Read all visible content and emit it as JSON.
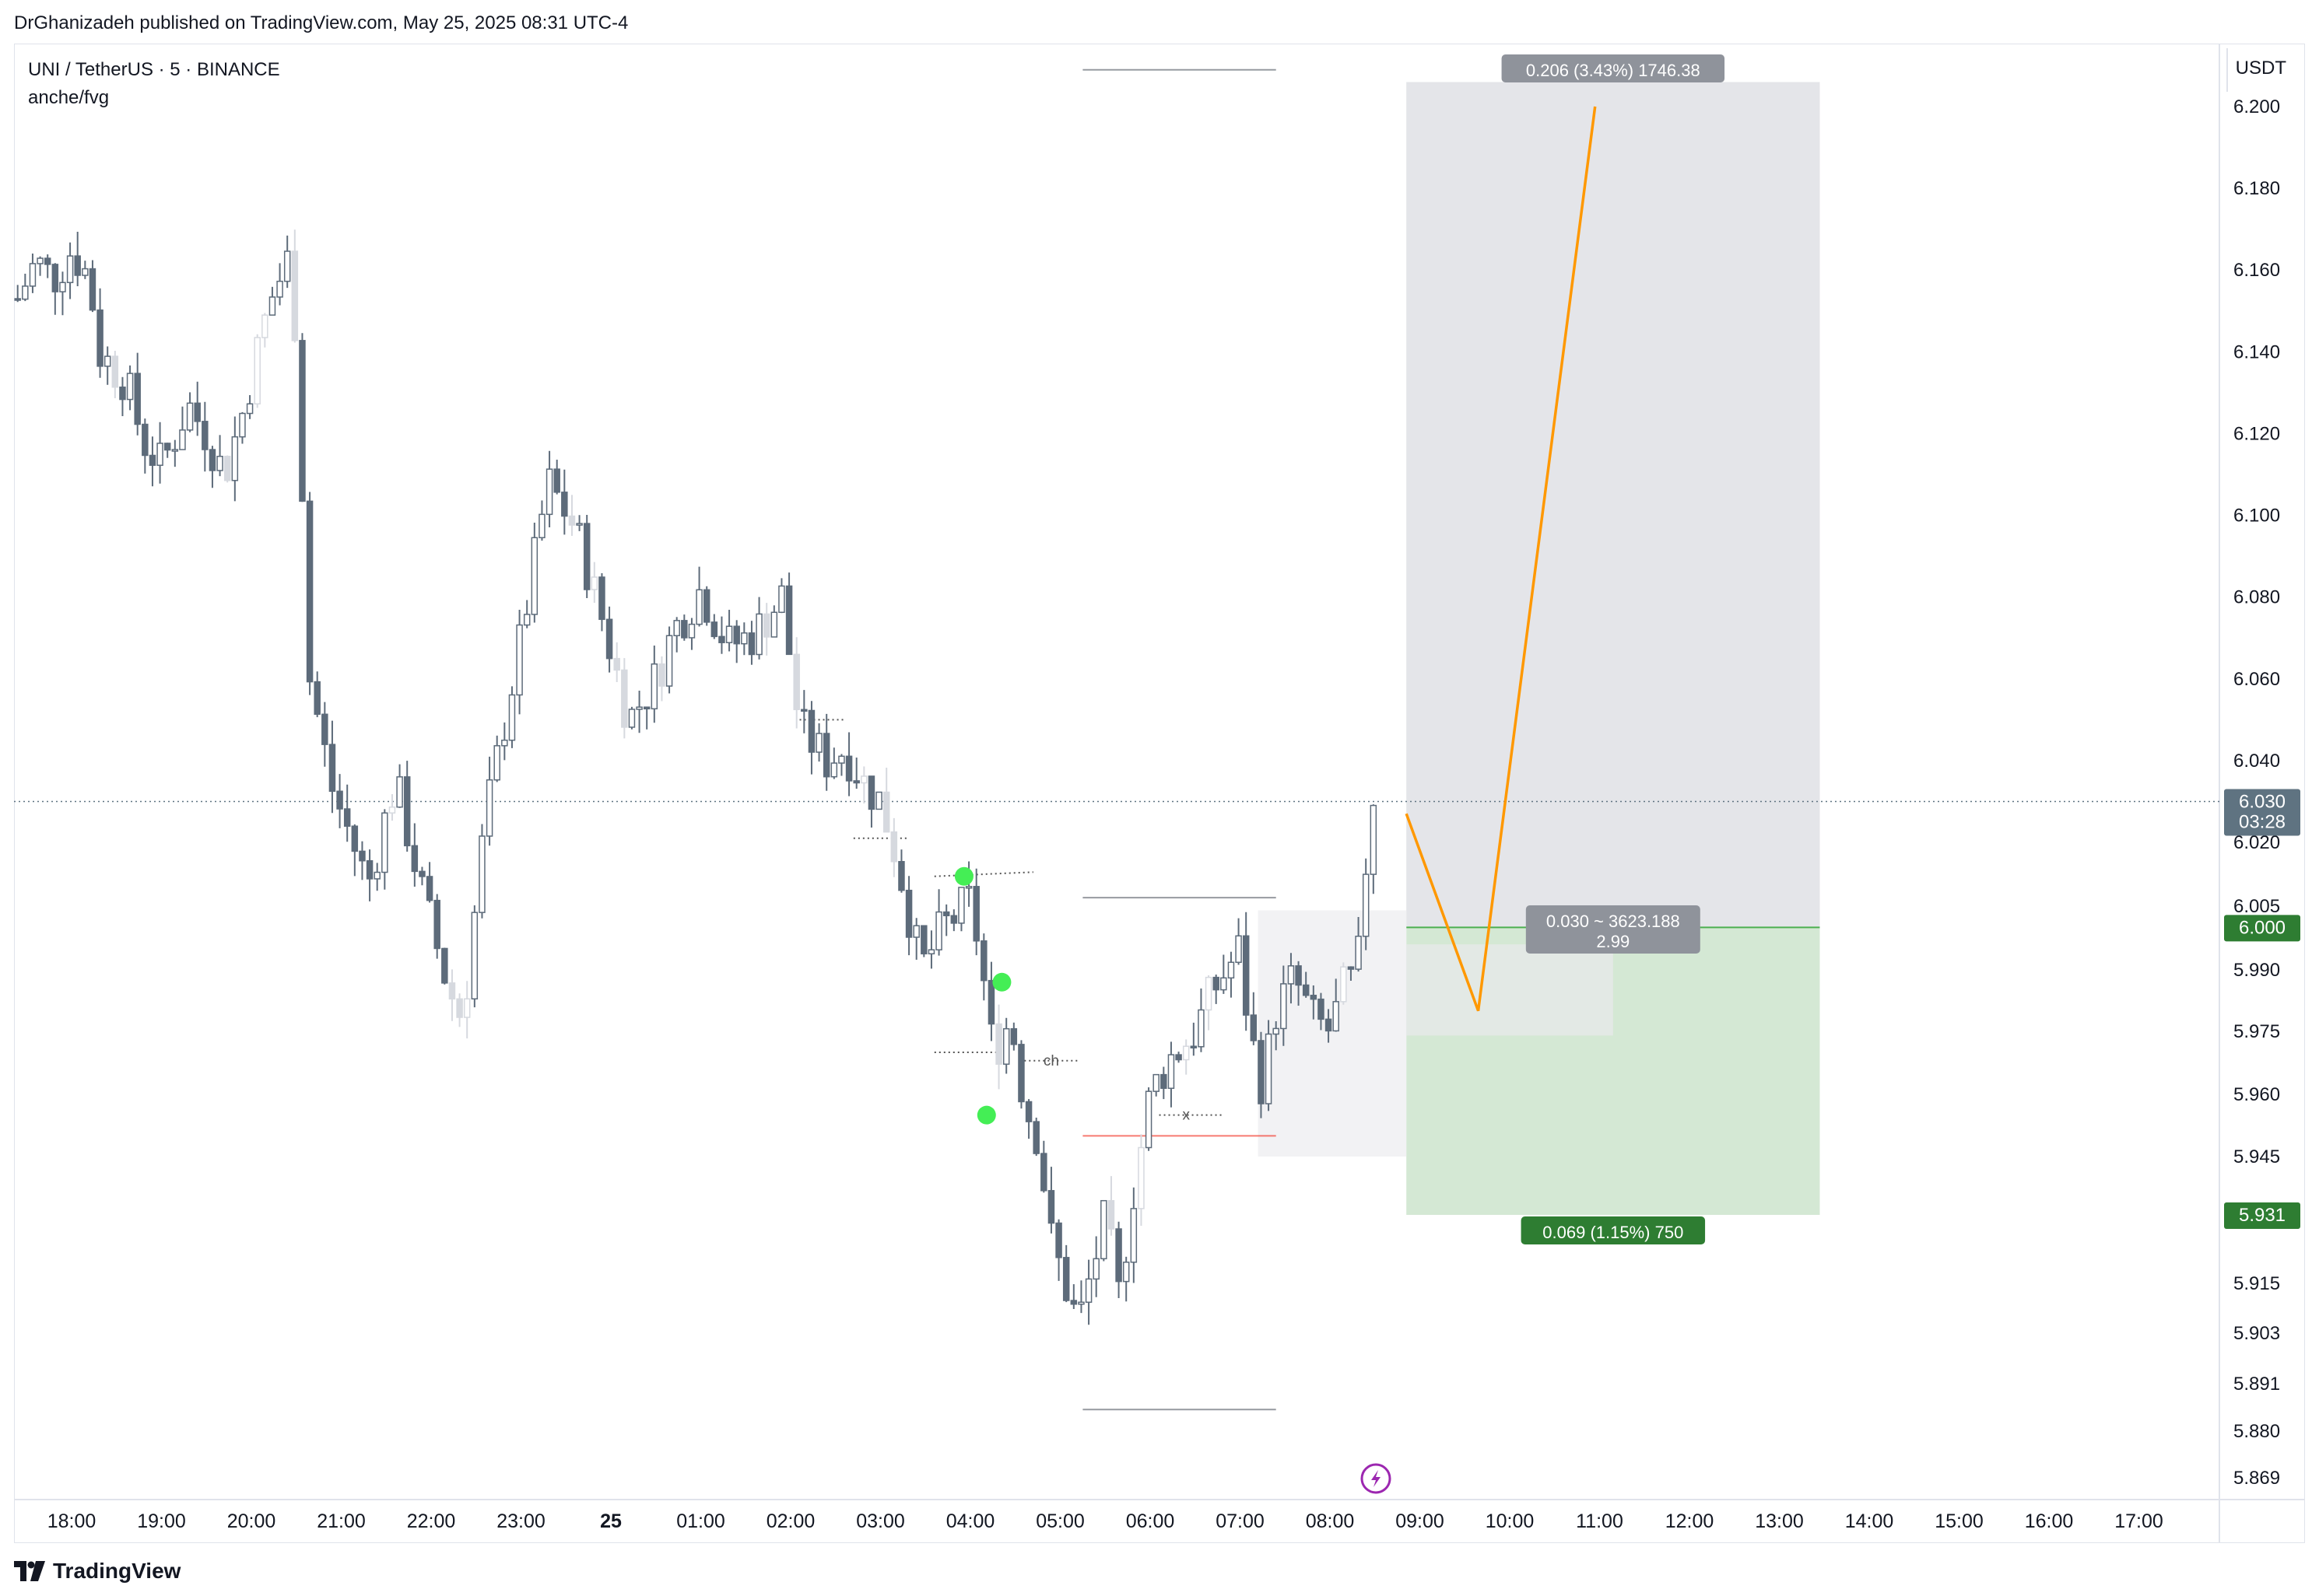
{
  "header": {
    "published_text": "DrGhanizadeh published on TradingView.com, May 25, 2025 08:31 UTC-4"
  },
  "legend": {
    "symbol_line": "UNI / TetherUS · 5 · BINANCE",
    "indicator_line": "anche/fvg"
  },
  "footer": {
    "brand": "TradingView"
  },
  "colors": {
    "candle": "#5d6b7a",
    "candle_light": "#d6d9df",
    "orange_path": "#ff9800",
    "target_zone": "#e4e5e9",
    "stop_zone": "#d4e8d4",
    "green_label": "#2e7d32",
    "gray_label": "#8f939b",
    "price_tag": "#5f7381",
    "fvg_dot": "#44ee55",
    "red_line": "#f44336",
    "lightning_icon": "#9c27b0"
  },
  "chart_data": {
    "type": "candlestick",
    "symbol": "UNI / TetherUS",
    "interval": "5",
    "exchange": "BINANCE",
    "price_axis_unit": "USDT",
    "price_ticks": [
      "6.200",
      "6.180",
      "6.160",
      "6.140",
      "6.120",
      "6.100",
      "6.080",
      "6.060",
      "6.040",
      "6.020",
      "6.005",
      "5.990",
      "5.975",
      "5.960",
      "5.945",
      "5.915",
      "5.903",
      "5.891",
      "5.880",
      "5.869"
    ],
    "time_ticks": [
      {
        "t": 0.0,
        "label": "18:00"
      },
      {
        "t": 1.0,
        "label": "19:00"
      },
      {
        "t": 2.0,
        "label": "20:00"
      },
      {
        "t": 3.0,
        "label": "21:00"
      },
      {
        "t": 4.0,
        "label": "22:00"
      },
      {
        "t": 5.0,
        "label": "23:00"
      },
      {
        "t": 6.0,
        "label": "25",
        "bold": true
      },
      {
        "t": 7.0,
        "label": "01:00"
      },
      {
        "t": 8.0,
        "label": "02:00"
      },
      {
        "t": 9.0,
        "label": "03:00"
      },
      {
        "t": 10.0,
        "label": "04:00"
      },
      {
        "t": 11.0,
        "label": "05:00"
      },
      {
        "t": 12.0,
        "label": "06:00"
      },
      {
        "t": 13.0,
        "label": "07:00"
      },
      {
        "t": 14.0,
        "label": "08:00"
      },
      {
        "t": 15.0,
        "label": "09:00"
      },
      {
        "t": 16.0,
        "label": "10:00"
      },
      {
        "t": 17.0,
        "label": "11:00"
      },
      {
        "t": 18.0,
        "label": "12:00"
      },
      {
        "t": 19.0,
        "label": "13:00"
      },
      {
        "t": 20.0,
        "label": "14:00"
      },
      {
        "t": 21.0,
        "label": "15:00"
      },
      {
        "t": 22.0,
        "label": "16:00"
      },
      {
        "t": 23.0,
        "label": "17:00"
      }
    ],
    "candles_keypoints": [
      {
        "t": -0.6,
        "p": 6.153
      },
      {
        "t": -0.4,
        "p": 6.162
      },
      {
        "t": -0.2,
        "p": 6.158
      },
      {
        "t": 0.0,
        "p": 6.165
      },
      {
        "t": 0.2,
        "p": 6.158
      },
      {
        "t": 0.3,
        "p": 6.14
      },
      {
        "t": 0.6,
        "p": 6.133
      },
      {
        "t": 0.8,
        "p": 6.118
      },
      {
        "t": 1.0,
        "p": 6.112
      },
      {
        "t": 1.3,
        "p": 6.127
      },
      {
        "t": 1.5,
        "p": 6.12
      },
      {
        "t": 1.7,
        "p": 6.11
      },
      {
        "t": 1.9,
        "p": 6.125
      },
      {
        "t": 2.2,
        "p": 6.152
      },
      {
        "t": 2.4,
        "p": 6.162
      },
      {
        "t": 2.5,
        "p": 6.145
      },
      {
        "t": 2.65,
        "p": 6.06
      },
      {
        "t": 2.9,
        "p": 6.033
      },
      {
        "t": 3.3,
        "p": 6.01
      },
      {
        "t": 3.6,
        "p": 6.035
      },
      {
        "t": 3.9,
        "p": 6.008
      },
      {
        "t": 4.2,
        "p": 5.985
      },
      {
        "t": 4.35,
        "p": 5.978
      },
      {
        "t": 4.6,
        "p": 6.025
      },
      {
        "t": 5.0,
        "p": 6.07
      },
      {
        "t": 5.3,
        "p": 6.108
      },
      {
        "t": 5.6,
        "p": 6.097
      },
      {
        "t": 5.9,
        "p": 6.075
      },
      {
        "t": 6.2,
        "p": 6.05
      },
      {
        "t": 6.5,
        "p": 6.06
      },
      {
        "t": 6.7,
        "p": 6.072
      },
      {
        "t": 7.0,
        "p": 6.082
      },
      {
        "t": 7.3,
        "p": 6.068
      },
      {
        "t": 7.6,
        "p": 6.071
      },
      {
        "t": 7.9,
        "p": 6.08
      },
      {
        "t": 8.1,
        "p": 6.048
      },
      {
        "t": 8.4,
        "p": 6.04
      },
      {
        "t": 8.6,
        "p": 6.043
      },
      {
        "t": 8.8,
        "p": 6.035
      },
      {
        "t": 9.0,
        "p": 6.03
      },
      {
        "t": 9.2,
        "p": 6.015
      },
      {
        "t": 9.45,
        "p": 5.99
      },
      {
        "t": 9.7,
        "p": 6.0
      },
      {
        "t": 10.0,
        "p": 6.006
      },
      {
        "t": 10.1,
        "p": 5.995
      },
      {
        "t": 10.25,
        "p": 5.97
      },
      {
        "t": 10.45,
        "p": 5.978
      },
      {
        "t": 10.6,
        "p": 5.958
      },
      {
        "t": 10.75,
        "p": 5.95
      },
      {
        "t": 10.9,
        "p": 5.925
      },
      {
        "t": 11.05,
        "p": 5.915
      },
      {
        "t": 11.2,
        "p": 5.905
      },
      {
        "t": 11.35,
        "p": 5.918
      },
      {
        "t": 11.5,
        "p": 5.93
      },
      {
        "t": 11.65,
        "p": 5.912
      },
      {
        "t": 11.8,
        "p": 5.935
      },
      {
        "t": 12.0,
        "p": 5.96
      },
      {
        "t": 12.2,
        "p": 5.968
      },
      {
        "t": 12.5,
        "p": 5.975
      },
      {
        "t": 12.7,
        "p": 5.985
      },
      {
        "t": 12.85,
        "p": 5.99
      },
      {
        "t": 13.0,
        "p": 5.995
      },
      {
        "t": 13.1,
        "p": 5.975
      },
      {
        "t": 13.25,
        "p": 5.962
      },
      {
        "t": 13.4,
        "p": 5.98
      },
      {
        "t": 13.6,
        "p": 5.988
      },
      {
        "t": 13.8,
        "p": 5.978
      },
      {
        "t": 14.0,
        "p": 5.975
      },
      {
        "t": 14.15,
        "p": 5.985
      },
      {
        "t": 14.3,
        "p": 5.988
      },
      {
        "t": 14.4,
        "p": 6.015
      },
      {
        "t": 14.5,
        "p": 6.035
      },
      {
        "t": 14.55,
        "p": 6.03
      }
    ],
    "current_price": {
      "price": 6.03,
      "label": "6.030",
      "countdown": "03:28"
    },
    "long_position": {
      "entry": 6.0,
      "entry_label": "6.000",
      "target": 6.206,
      "target_label": "0.206 (3.43%) 1746.38",
      "stop": 5.931,
      "stop_label_axis": "5.931",
      "stop_label": "0.069 (1.15%) 750",
      "center_label_line1": "0.030 ~ 3623.188",
      "center_label_line2": "2.99",
      "t_start": 14.85,
      "t_end": 19.45
    },
    "projection_path": [
      {
        "t": 14.85,
        "p": 6.027
      },
      {
        "t": 15.65,
        "p": 5.98
      },
      {
        "t": 16.95,
        "p": 6.2
      }
    ],
    "fvg_markers": [
      {
        "t": 9.93,
        "p": 6.012
      },
      {
        "t": 10.35,
        "p": 5.987
      },
      {
        "t": 10.18,
        "p": 5.955
      }
    ],
    "annotations": [
      {
        "text": "ch",
        "t": 10.9,
        "p": 5.968
      },
      {
        "text": "x",
        "t": 12.4,
        "p": 5.955
      }
    ],
    "range_lines": [
      {
        "t_start": 11.25,
        "t_end": 13.4,
        "p": 6.209
      },
      {
        "t_start": 11.25,
        "t_end": 13.4,
        "p": 6.007
      },
      {
        "t_start": 11.25,
        "t_end": 13.4,
        "p": 5.885
      },
      {
        "t_start": 11.25,
        "t_end": 13.4,
        "p": 5.95,
        "color": "red"
      }
    ],
    "grid": false
  }
}
